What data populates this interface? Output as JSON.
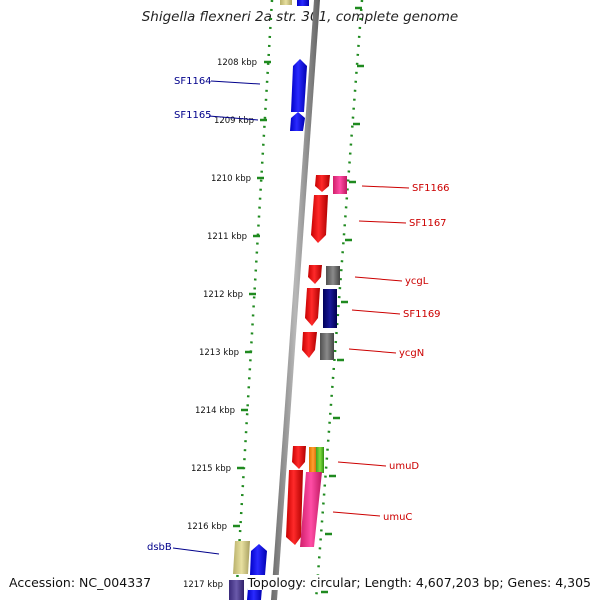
{
  "title": "Shigella flexneri 2a str. 301, complete genome",
  "footer": {
    "accession": "Accession: NC_004337",
    "summary": "Topology: circular; Length: 4,607,203 bp; Genes: 4,305"
  },
  "colors": {
    "backbone": "#8c8c8c",
    "tick_dots": "#1f8a1f",
    "forward_gene": "#1111ee",
    "reverse_gene": "#ee1111",
    "left_label": "#00008b",
    "right_label": "#cc0000"
  },
  "scale_labels": [
    "1208 kbp",
    "1209 kbp",
    "1210 kbp",
    "1211 kbp",
    "1212 kbp",
    "1213 kbp",
    "1214 kbp",
    "1215 kbp",
    "1216 kbp",
    "1217 kbp"
  ],
  "gene_labels_left": [
    "SF1164",
    "SF1165",
    "dsbB"
  ],
  "gene_labels_right": [
    "SF1166",
    "SF1167",
    "ycgL",
    "SF1169",
    "ycgN",
    "umuD",
    "umuC"
  ]
}
